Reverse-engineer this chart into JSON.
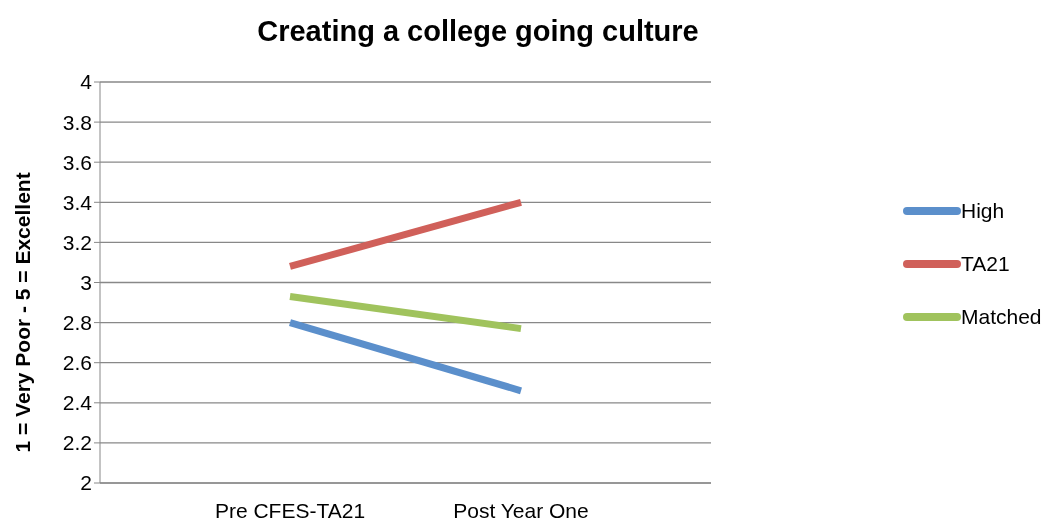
{
  "chart_data": {
    "type": "line",
    "title": "Creating a college going culture",
    "ylabel": "1 = Very Poor - 5 = Excellent",
    "categories": [
      "Pre CFES-TA21",
      "Post Year One"
    ],
    "series": [
      {
        "name": "High",
        "color": "#5b8fcb",
        "values": [
          2.8,
          2.46
        ]
      },
      {
        "name": "TA21",
        "color": "#d0605a",
        "values": [
          3.08,
          3.4
        ]
      },
      {
        "name": "Matched",
        "color": "#a0c35d",
        "values": [
          2.93,
          2.77
        ]
      }
    ],
    "ylim": [
      2,
      4
    ],
    "yticks": [
      2,
      2.2,
      2.4,
      2.6,
      2.8,
      3,
      3.2,
      3.4,
      3.6,
      3.8,
      4
    ],
    "grid": "y",
    "legend": "right",
    "marker": "none",
    "line_style": "solid"
  }
}
